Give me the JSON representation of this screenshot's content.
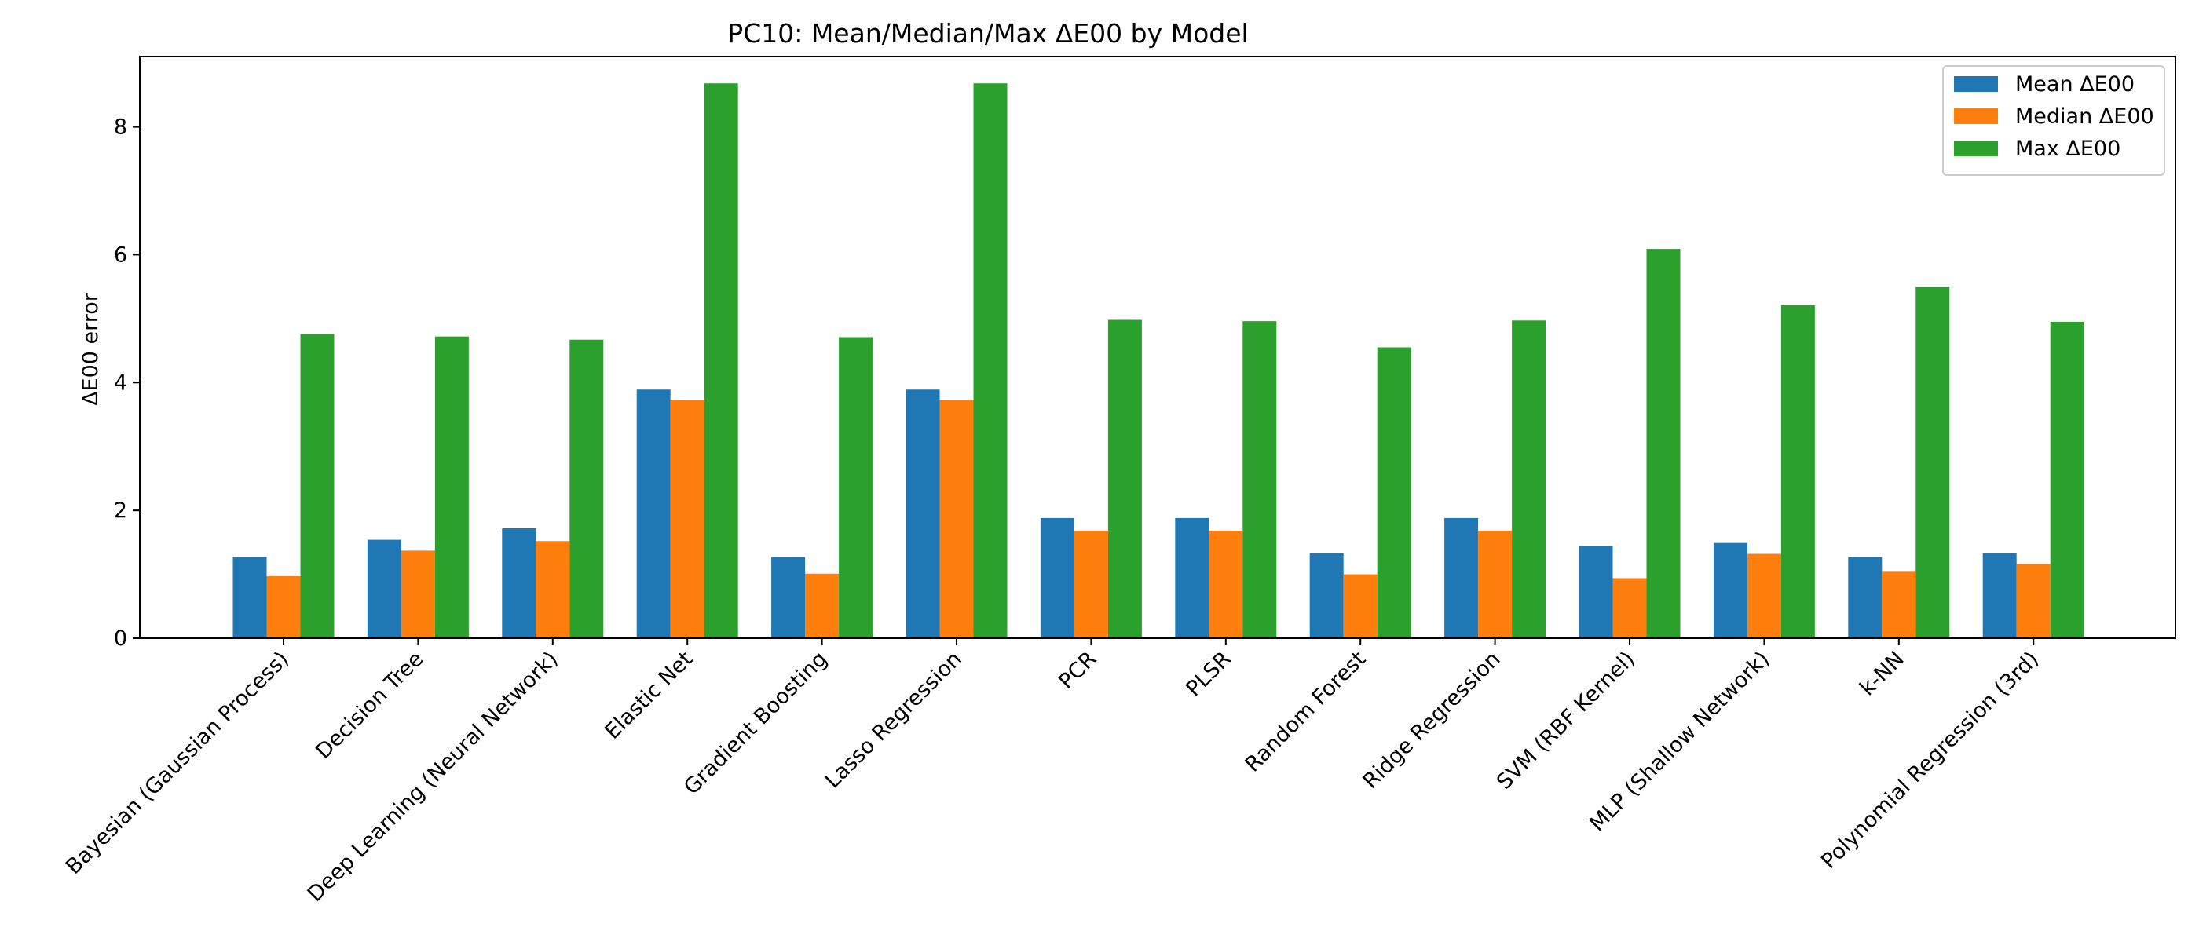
{
  "chart_data": {
    "type": "bar",
    "title": "PC10: Mean/Median/Max ΔE00 by Model",
    "xlabel": "",
    "ylabel": "ΔE00 error",
    "ylim": [
      0,
      9.1
    ],
    "yticks": [
      0,
      2,
      4,
      6,
      8
    ],
    "grid": false,
    "legend_position": "top-right",
    "categories": [
      "Bayesian (Gaussian Process)",
      "Decision Tree",
      "Deep Learning (Neural Network)",
      "Elastic Net",
      "Gradient Boosting",
      "Lasso Regression",
      "PCR",
      "PLSR",
      "Random Forest",
      "Ridge Regression",
      "SVM (RBF Kernel)",
      "MLP (Shallow Network)",
      "k-NN",
      "Polynomial Regression (3rd)"
    ],
    "series": [
      {
        "name": "Mean ΔE00",
        "color": "#1f77b4",
        "values": [
          1.27,
          1.54,
          1.72,
          3.89,
          1.27,
          3.89,
          1.88,
          1.88,
          1.33,
          1.88,
          1.44,
          1.49,
          1.27,
          1.33
        ]
      },
      {
        "name": "Median ΔE00",
        "color": "#ff7f0e",
        "values": [
          0.97,
          1.37,
          1.52,
          3.73,
          1.01,
          3.73,
          1.68,
          1.68,
          1.0,
          1.68,
          0.94,
          1.32,
          1.04,
          1.16
        ]
      },
      {
        "name": "Max ΔE00",
        "color": "#2ca02c",
        "values": [
          4.76,
          4.72,
          4.67,
          8.68,
          4.71,
          8.68,
          4.98,
          4.96,
          4.55,
          4.97,
          6.09,
          5.21,
          5.5,
          4.95
        ]
      }
    ]
  }
}
